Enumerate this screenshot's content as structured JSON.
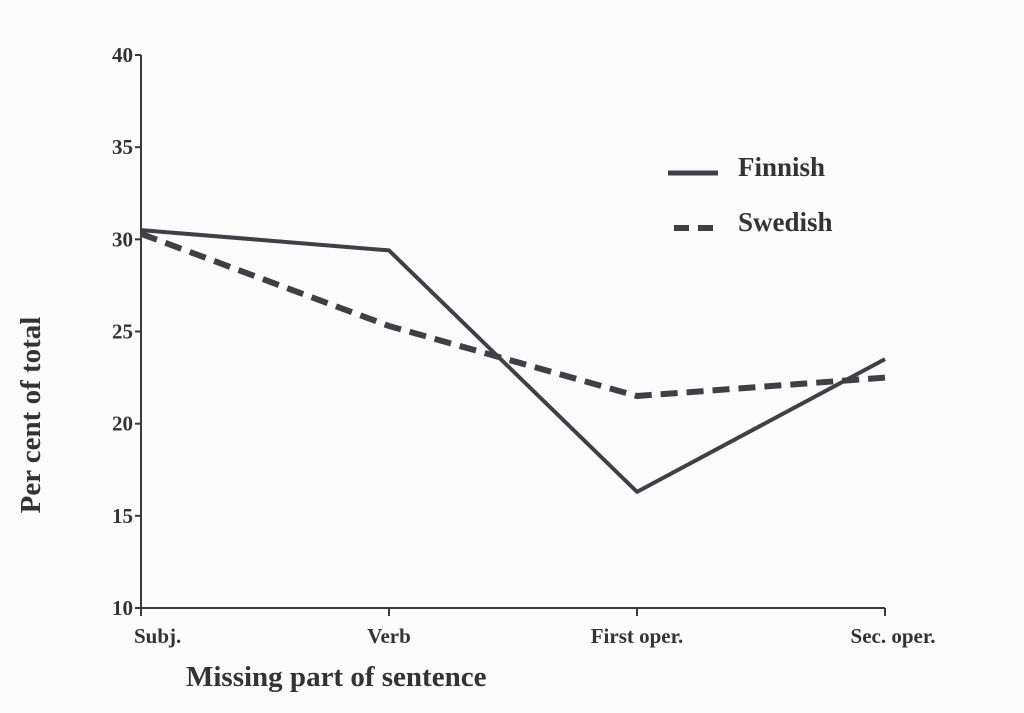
{
  "chart_data": {
    "type": "line",
    "categories": [
      "Subj.",
      "Verb",
      "First oper.",
      "Sec. oper."
    ],
    "series": [
      {
        "name": "Finnish",
        "values": [
          30.5,
          29.4,
          16.3,
          23.5
        ],
        "style": "solid",
        "color": "#3f3f46"
      },
      {
        "name": "Swedish",
        "values": [
          30.3,
          25.3,
          21.5,
          22.5
        ],
        "style": "dashed",
        "color": "#3f3f46"
      }
    ],
    "xlabel": "Missing part of sentence",
    "ylabel": "Per cent of total",
    "ylim": [
      10,
      40
    ],
    "yticks": [
      10,
      15,
      20,
      25,
      30,
      35,
      40
    ],
    "grid": false,
    "legend_position": "top-right"
  }
}
